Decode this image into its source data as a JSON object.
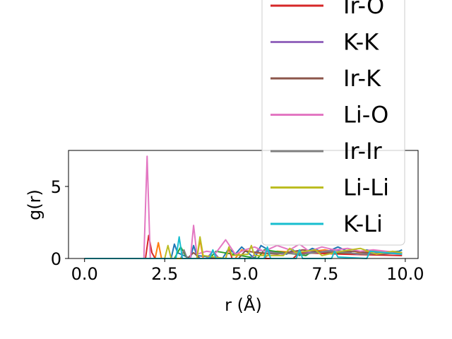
{
  "chart_data": {
    "type": "line",
    "xlabel": "r (Å)",
    "ylabel": "g(r)",
    "xlim": [
      -0.5,
      10.4
    ],
    "ylim": [
      0,
      7.5
    ],
    "xticks": [
      0.0,
      2.5,
      5.0,
      7.5,
      10.0
    ],
    "xtick_labels": [
      "0.0",
      "2.5",
      "5.0",
      "7.5",
      "10.0"
    ],
    "yticks": [
      0,
      5
    ],
    "ytick_labels": [
      "0",
      "5"
    ],
    "legend_placement": "upper-right, extending above the plot",
    "legend": [
      {
        "label": "Ir-O",
        "color": "#d62728"
      },
      {
        "label": "K-K",
        "color": "#9467bd"
      },
      {
        "label": "Ir-K",
        "color": "#8c564b"
      },
      {
        "label": "Li-O",
        "color": "#e377c2"
      },
      {
        "label": "Ir-Ir",
        "color": "#7f7f7f"
      },
      {
        "label": "Li-Li",
        "color": "#bcbd22"
      },
      {
        "label": "K-Li",
        "color": "#17becf"
      }
    ],
    "series": [
      {
        "color": "#1f77b4",
        "x": [
          0,
          1.8,
          2.7,
          2.8,
          2.9,
          3.3,
          3.4,
          3.5,
          4.3,
          4.5,
          4.7,
          4.9,
          5.3,
          5.5,
          5.8,
          6.3,
          6.5,
          6.7,
          7.1,
          7.5,
          7.9,
          8.4,
          8.8,
          9.3,
          9.8,
          9.9
        ],
        "y": [
          0,
          0,
          0,
          1.0,
          0.4,
          0,
          0.9,
          0.2,
          0,
          0.7,
          0.3,
          0.8,
          0,
          0.9,
          0.5,
          0.3,
          0.6,
          0.2,
          0.7,
          0.4,
          0.8,
          0.3,
          0.6,
          0.4,
          0.5,
          0.6
        ]
      },
      {
        "color": "#ff7f0e",
        "x": [
          0,
          2.2,
          2.3,
          2.4,
          3.5,
          3.6,
          3.7,
          4.7,
          4.9,
          5.6,
          6.0,
          6.8,
          7.5,
          8.2,
          9.0,
          9.8
        ],
        "y": [
          0,
          0,
          1.1,
          0,
          0,
          1.3,
          0,
          0,
          0.6,
          0.3,
          0.5,
          0.4,
          0.6,
          0.3,
          0.5,
          0.4
        ]
      },
      {
        "color": "#2ca02c",
        "x": [
          0,
          2.8,
          3.0,
          3.2,
          3.9,
          4.1,
          5.4,
          5.6,
          6.9,
          7.1,
          8.5,
          9.9
        ],
        "y": [
          0,
          0,
          0.8,
          0,
          0,
          0.5,
          0,
          0.6,
          0.2,
          0.5,
          0.3,
          0.4
        ]
      },
      {
        "color": "#d62728",
        "x": [
          0,
          1.9,
          2.0,
          2.1,
          2.2,
          4.4,
          4.5,
          4.6,
          6.5,
          6.7,
          8.0,
          9.9
        ],
        "y": [
          0,
          0,
          1.6,
          0.4,
          0,
          0,
          0.7,
          0,
          0,
          0.4,
          0.3,
          0.2
        ]
      },
      {
        "color": "#9467bd",
        "x": [
          0,
          3.8,
          4.0,
          4.2,
          5.2,
          5.4,
          6.2,
          6.6,
          7.2,
          7.8,
          8.5,
          9.2,
          9.9
        ],
        "y": [
          0,
          0,
          0.5,
          0,
          0,
          0.6,
          0.3,
          0.5,
          0.4,
          0.6,
          0.3,
          0.4,
          0.3
        ]
      },
      {
        "color": "#8c564b",
        "x": [
          0,
          3.2,
          3.4,
          3.6,
          4.8,
          5.0,
          6.0,
          6.8,
          7.6,
          8.4,
          9.2,
          9.9
        ],
        "y": [
          0,
          0,
          0.4,
          0,
          0,
          0.5,
          0.3,
          0.6,
          0.4,
          0.5,
          0.3,
          0.4
        ]
      },
      {
        "color": "#e377c2",
        "x": [
          0,
          1.85,
          1.95,
          2.05,
          3.3,
          3.4,
          3.5,
          3.8,
          4.1,
          4.4,
          4.7,
          5.0,
          5.3,
          5.6,
          6.0,
          6.4,
          6.7,
          7.0,
          7.4,
          7.8,
          8.2,
          8.6,
          9.0,
          9.4,
          9.9
        ],
        "y": [
          0,
          0,
          7.1,
          0,
          0,
          2.3,
          0.3,
          0.5,
          0.4,
          1.3,
          0.3,
          0.6,
          0.8,
          0.5,
          0.9,
          0.6,
          1.0,
          0.5,
          0.8,
          0.6,
          0.7,
          0.5,
          0.6,
          0.5,
          0.4
        ]
      },
      {
        "color": "#7f7f7f",
        "x": [
          0,
          3.0,
          3.1,
          3.2,
          5.6,
          5.8,
          6.8,
          7.6,
          8.7,
          9.9
        ],
        "y": [
          0,
          0,
          0.6,
          0,
          0,
          0.4,
          0.3,
          0.5,
          0.3,
          0.4
        ]
      },
      {
        "color": "#bcbd22",
        "x": [
          0,
          2.5,
          2.6,
          2.7,
          3.5,
          3.6,
          3.7,
          4.4,
          4.5,
          4.6,
          5.1,
          5.2,
          5.3,
          6.2,
          6.4,
          6.6,
          7.2,
          7.4,
          8.0,
          8.6,
          9.1,
          9.6,
          9.9
        ],
        "y": [
          0,
          0,
          0.9,
          0,
          0,
          1.5,
          0.2,
          0,
          0.8,
          0.2,
          0.3,
          0.9,
          0.2,
          0.2,
          0.7,
          0.4,
          0.6,
          0.2,
          0.5,
          0.7,
          0.3,
          0.5,
          0.4
        ]
      },
      {
        "color": "#17becf",
        "x": [
          0,
          2.85,
          2.95,
          3.05,
          3.9,
          4.0,
          4.1,
          5.6,
          5.7,
          5.8,
          6.6,
          6.7,
          6.8,
          7.7,
          7.8,
          7.9,
          8.8,
          8.9,
          9.9
        ],
        "y": [
          0,
          0,
          1.5,
          0,
          0,
          0.6,
          0,
          0,
          0.8,
          0,
          0,
          0.6,
          0,
          0,
          0.5,
          0.1,
          0,
          0.5,
          0.3
        ]
      }
    ]
  }
}
